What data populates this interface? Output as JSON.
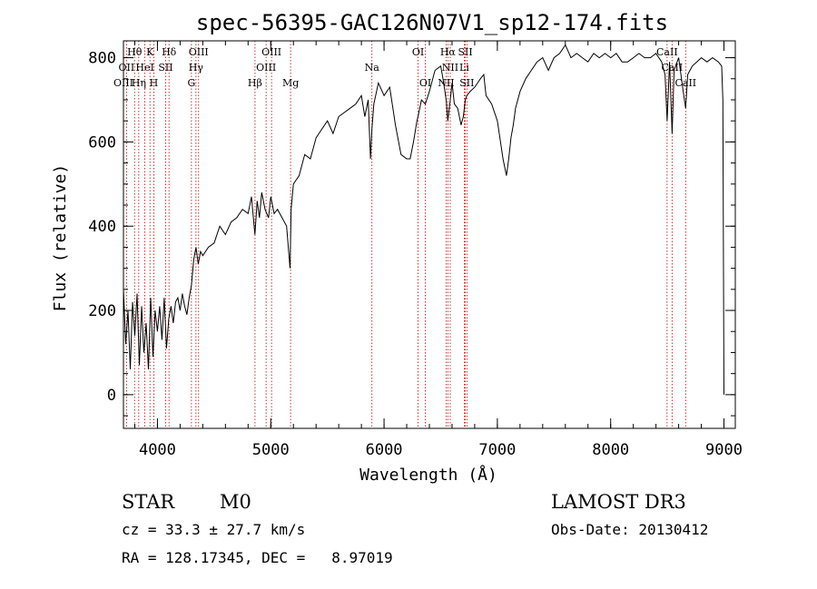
{
  "chart_data": {
    "type": "line",
    "title": "spec-56395-GAC126N07V1_sp12-174.fits",
    "xlabel": "Wavelength (Å)",
    "ylabel": "Flux (relative)",
    "xlim": [
      3700,
      9100
    ],
    "ylim": [
      -80,
      840
    ],
    "xticks": [
      {
        "v": 4000,
        "label": "4000"
      },
      {
        "v": 5000,
        "label": "5000"
      },
      {
        "v": 6000,
        "label": "6000"
      },
      {
        "v": 7000,
        "label": "7000"
      },
      {
        "v": 8000,
        "label": "8000"
      },
      {
        "v": 9000,
        "label": "9000"
      }
    ],
    "yticks": [
      {
        "v": 0,
        "label": "0"
      },
      {
        "v": 200,
        "label": "200"
      },
      {
        "v": 400,
        "label": "400"
      },
      {
        "v": 600,
        "label": "600"
      },
      {
        "v": 800,
        "label": "800"
      }
    ],
    "x_minor_step": 200,
    "y_minor_step": 50,
    "grid": false,
    "line_color": "#000000",
    "marker_color": "#c00000",
    "spectral_lines": [
      {
        "label": "Hθ",
        "x": 3798,
        "row": 1
      },
      {
        "label": "K",
        "x": 3934,
        "row": 1
      },
      {
        "label": "Hδ",
        "x": 4102,
        "row": 1
      },
      {
        "label": "OIII",
        "x": 4363,
        "row": 1
      },
      {
        "label": "OIII",
        "x": 5007,
        "row": 1
      },
      {
        "label": "OI",
        "x": 6300,
        "row": 1
      },
      {
        "label": "Hα",
        "x": 6563,
        "row": 1
      },
      {
        "label": "SII",
        "x": 6717,
        "row": 1
      },
      {
        "label": "CaII",
        "x": 8498,
        "row": 1
      },
      {
        "label": "OII",
        "x": 3727,
        "row": 2
      },
      {
        "label": "HeI",
        "x": 3889,
        "row": 2
      },
      {
        "label": "SII",
        "x": 4072,
        "row": 2
      },
      {
        "label": "Hγ",
        "x": 4340,
        "row": 2
      },
      {
        "label": "OIII",
        "x": 4959,
        "row": 2
      },
      {
        "label": "Na",
        "x": 5893,
        "row": 2
      },
      {
        "label": "NII",
        "x": 6584,
        "row": 2
      },
      {
        "label": "Li",
        "x": 6708,
        "row": 2
      },
      {
        "label": "CaII",
        "x": 8542,
        "row": 2
      },
      {
        "label": "OIII",
        "x": 3700,
        "row": 3
      },
      {
        "label": "Hη",
        "x": 3835,
        "row": 3
      },
      {
        "label": "H",
        "x": 3968,
        "row": 3
      },
      {
        "label": "G",
        "x": 4300,
        "row": 3
      },
      {
        "label": "Hβ",
        "x": 4861,
        "row": 3
      },
      {
        "label": "Mg",
        "x": 5175,
        "row": 3
      },
      {
        "label": "OI",
        "x": 6364,
        "row": 3
      },
      {
        "label": "NII",
        "x": 6548,
        "row": 3
      },
      {
        "label": "SII",
        "x": 6731,
        "row": 3
      },
      {
        "label": "CaII",
        "x": 8662,
        "row": 3
      }
    ],
    "spectrum": {
      "x": [
        3700,
        3720,
        3740,
        3760,
        3780,
        3800,
        3820,
        3840,
        3860,
        3880,
        3900,
        3920,
        3940,
        3960,
        3980,
        4000,
        4020,
        4040,
        4060,
        4080,
        4100,
        4120,
        4140,
        4160,
        4180,
        4200,
        4220,
        4240,
        4260,
        4280,
        4300,
        4320,
        4340,
        4360,
        4380,
        4400,
        4450,
        4500,
        4550,
        4600,
        4650,
        4700,
        4750,
        4800,
        4830,
        4860,
        4880,
        4900,
        4920,
        4950,
        4980,
        5000,
        5030,
        5060,
        5100,
        5140,
        5170,
        5180,
        5200,
        5250,
        5300,
        5350,
        5400,
        5450,
        5500,
        5550,
        5600,
        5650,
        5700,
        5750,
        5800,
        5830,
        5860,
        5880,
        5893,
        5910,
        5950,
        6000,
        6050,
        6100,
        6150,
        6200,
        6230,
        6260,
        6290,
        6300,
        6330,
        6364,
        6400,
        6450,
        6500,
        6520,
        6548,
        6563,
        6584,
        6600,
        6620,
        6650,
        6680,
        6700,
        6717,
        6731,
        6760,
        6800,
        6850,
        6880,
        6900,
        6950,
        7000,
        7050,
        7080,
        7100,
        7120,
        7140,
        7160,
        7200,
        7250,
        7300,
        7350,
        7400,
        7450,
        7500,
        7550,
        7600,
        7650,
        7700,
        7750,
        7800,
        7850,
        7900,
        7950,
        8000,
        8050,
        8100,
        8150,
        8200,
        8250,
        8300,
        8350,
        8400,
        8450,
        8480,
        8498,
        8520,
        8542,
        8560,
        8600,
        8640,
        8662,
        8680,
        8720,
        8760,
        8800,
        8850,
        8900,
        8950,
        8980,
        8990,
        9000
      ],
      "y": [
        250,
        120,
        200,
        60,
        220,
        140,
        240,
        70,
        210,
        100,
        170,
        60,
        230,
        90,
        200,
        150,
        210,
        130,
        230,
        110,
        180,
        210,
        170,
        220,
        230,
        200,
        240,
        210,
        190,
        230,
        260,
        320,
        350,
        310,
        340,
        330,
        350,
        360,
        400,
        380,
        410,
        420,
        440,
        430,
        470,
        380,
        460,
        420,
        480,
        440,
        420,
        470,
        430,
        440,
        420,
        400,
        300,
        440,
        500,
        520,
        570,
        560,
        610,
        630,
        650,
        620,
        660,
        670,
        680,
        690,
        710,
        660,
        700,
        560,
        630,
        690,
        740,
        710,
        730,
        640,
        570,
        560,
        560,
        600,
        650,
        660,
        700,
        690,
        720,
        770,
        780,
        750,
        700,
        650,
        700,
        740,
        690,
        680,
        640,
        660,
        700,
        710,
        720,
        730,
        750,
        760,
        710,
        690,
        650,
        560,
        520,
        560,
        610,
        640,
        680,
        720,
        750,
        770,
        790,
        800,
        770,
        800,
        810,
        830,
        800,
        810,
        800,
        790,
        810,
        800,
        810,
        800,
        810,
        790,
        790,
        800,
        810,
        800,
        800,
        810,
        790,
        760,
        650,
        790,
        620,
        770,
        800,
        720,
        680,
        760,
        780,
        790,
        800,
        790,
        800,
        790,
        780,
        700,
        0
      ]
    }
  },
  "info": {
    "class": "STAR",
    "subclass": "M0",
    "survey": "LAMOST DR3",
    "cz": "cz = 33.3 ± 27.7 km/s",
    "obs_date": "Obs-Date: 20130412",
    "radec": "RA = 128.17345, DEC =   8.97019"
  }
}
